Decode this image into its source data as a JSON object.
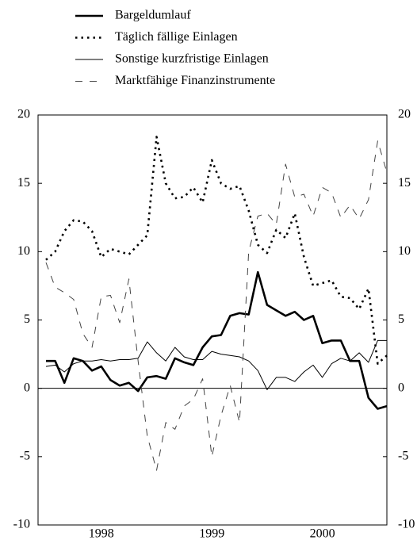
{
  "chart_data": {
    "type": "line",
    "categories": [
      null,
      null,
      null,
      null,
      null,
      null,
      "1998",
      null,
      null,
      null,
      null,
      null,
      null,
      null,
      null,
      null,
      null,
      null,
      "1999",
      null,
      null,
      null,
      null,
      null,
      null,
      null,
      null,
      null,
      null,
      null,
      "2000",
      null,
      null,
      null,
      null,
      null,
      null,
      null
    ],
    "series": [
      {
        "name": "Bargeldumlauf",
        "color": "#000000",
        "style": "solid",
        "width": 2.6,
        "values": [
          2.0,
          2.0,
          0.4,
          2.2,
          2.0,
          1.3,
          1.6,
          0.6,
          0.2,
          0.4,
          -0.2,
          0.8,
          0.9,
          0.7,
          2.2,
          1.9,
          1.7,
          3.0,
          3.8,
          3.9,
          5.3,
          5.5,
          5.4,
          8.5,
          6.1,
          5.7,
          5.3,
          5.6,
          5.0,
          5.3,
          3.3,
          3.5,
          3.5,
          2.0,
          2.0,
          -0.7,
          -1.5,
          -1.3
        ]
      },
      {
        "name": "Täglich fällige Einlagen",
        "color": "#000000",
        "style": "dotted",
        "width": 2.6,
        "values": [
          9.4,
          10.0,
          11.5,
          12.3,
          12.2,
          11.5,
          9.6,
          10.2,
          10.0,
          9.8,
          10.5,
          11.2,
          18.4,
          15.0,
          13.9,
          14.0,
          14.7,
          13.6,
          16.7,
          15.0,
          14.6,
          14.8,
          13.0,
          10.5,
          9.9,
          11.6,
          11.0,
          12.8,
          9.6,
          7.5,
          7.7,
          7.9,
          6.7,
          6.6,
          5.8,
          7.3,
          1.8,
          2.4
        ]
      },
      {
        "name": "Sonstige kurzfristige Einlagen",
        "color": "#000000",
        "style": "solid",
        "width": 1,
        "values": [
          1.6,
          1.7,
          1.2,
          1.8,
          2.0,
          2.0,
          2.1,
          2.0,
          2.1,
          2.1,
          2.2,
          3.4,
          2.6,
          2.0,
          3.0,
          2.3,
          2.1,
          2.1,
          2.7,
          2.5,
          2.4,
          2.3,
          2.0,
          1.3,
          -0.1,
          0.8,
          0.8,
          0.5,
          1.2,
          1.7,
          0.8,
          1.8,
          2.2,
          2.0,
          2.6,
          1.9,
          3.5,
          3.5
        ]
      },
      {
        "name": "Marktfähige Finanzinstrumente",
        "color": "#444444",
        "style": "dashed",
        "width": 1,
        "values": [
          9.2,
          7.4,
          7.0,
          6.5,
          4.0,
          3.0,
          6.7,
          6.8,
          4.8,
          8.0,
          2.0,
          -3.5,
          -6.0,
          -2.5,
          -3.0,
          -1.3,
          -0.8,
          0.7,
          -5.0,
          -2.0,
          0.2,
          -2.5,
          10.0,
          12.6,
          12.8,
          12.0,
          16.4,
          14.0,
          14.2,
          12.6,
          14.7,
          14.3,
          12.5,
          13.4,
          12.4,
          13.8,
          18.1,
          15.8
        ]
      }
    ],
    "ylim": [
      -10,
      20
    ],
    "yticks": [
      -10,
      -5,
      0,
      5,
      10,
      15,
      20
    ],
    "y2lim": [
      -10,
      20
    ],
    "y2ticks": [
      -10,
      -5,
      0,
      5,
      10,
      15,
      20
    ],
    "legend": "top-left"
  }
}
